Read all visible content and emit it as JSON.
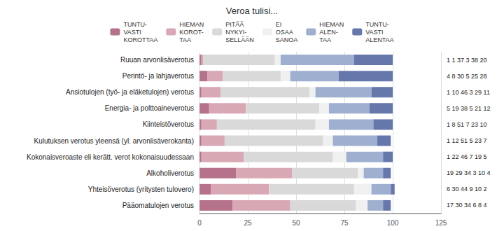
{
  "chart_data": {
    "type": "bar",
    "orientation": "horizontal",
    "stacked": true,
    "title": "Veroa tulisi...",
    "categories": [
      "Ruuan arvonlisäverotus",
      "Perintö- ja lahjaverotus",
      "Ansiotulojen (työ- ja eläketulojen) verotus",
      "Energia- ja polttoaineverotus",
      "Kiinteistöverotus",
      "Kulutuksen verotus yleensä (yl. arvonlisäverokanta)",
      "Kokonaisveroaste eli kerätt. verot kokonaisuudessaan",
      "Alkoholiverotus",
      "Yhteisöverotus (yritysten tulovero)",
      "Pääomatulojen verotus"
    ],
    "series": [
      {
        "name": "TUNTU-\nVASTI\nKOROTTAA",
        "color": "#b5728a",
        "values": [
          1,
          4,
          1,
          5,
          1,
          1,
          1,
          19,
          6,
          17
        ]
      },
      {
        "name": "HIEMAN\nKOROT-\nTAA",
        "color": "#d9a8b5",
        "values": [
          1,
          8,
          10,
          19,
          8,
          12,
          22,
          29,
          30,
          30
        ]
      },
      {
        "name": "PITÄÄ\nNYKYI-\nSELLÄÄN",
        "color": "#d9d9d9",
        "values": [
          37,
          30,
          46,
          38,
          51,
          51,
          46,
          34,
          44,
          34
        ]
      },
      {
        "name": "EI\nOSAA\nSANOA",
        "color": "#f0f0f0",
        "values": [
          3,
          5,
          3,
          5,
          7,
          5,
          7,
          3,
          9,
          6
        ]
      },
      {
        "name": "HIEMAN\nALEN-\nTAA",
        "color": "#9eafd0",
        "values": [
          38,
          25,
          29,
          21,
          23,
          23,
          19,
          10,
          10,
          8
        ]
      },
      {
        "name": "TUNTU-\nVASTI\nALENTAA",
        "color": "#6677ab",
        "values": [
          20,
          28,
          11,
          12,
          10,
          7,
          5,
          4,
          2,
          4
        ]
      }
    ],
    "annotations": [
      "1 1 37 3 38 20",
      "4 8 30 5 25 28",
      "1 10 46 3 29 11",
      "5 19 38 5 21 12",
      "1 8 51 7 23 10",
      "1 12 51 5 23 7",
      "1 22 46 7 19 5",
      "19 29 34 3 10 4",
      "6 30 44 9 10 2",
      "17 30 34 6 8 4"
    ],
    "xlim": [
      0,
      125
    ],
    "xticks": [
      0,
      25,
      50,
      75,
      100,
      125
    ],
    "grid": true
  }
}
